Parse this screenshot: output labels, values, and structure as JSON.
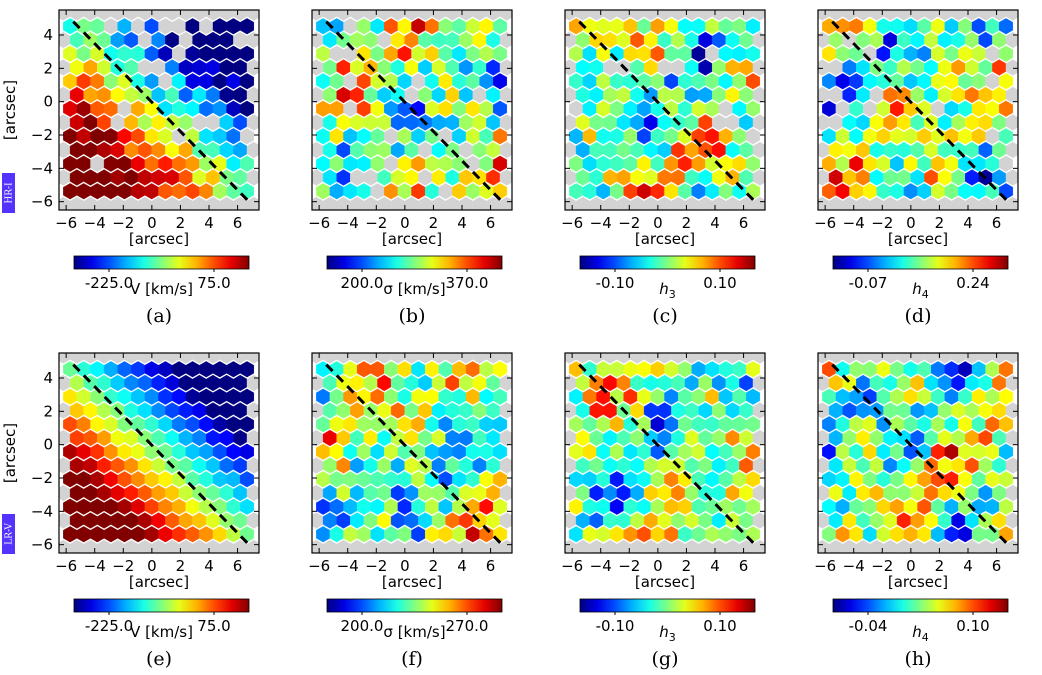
{
  "colors": {
    "background": "#ffffff",
    "empty_bin": "#d3d3d3",
    "row_tag": "#5533ff",
    "rotation_axis": "#000000",
    "colormap": "jet"
  },
  "row_tags": [
    "HR-I",
    "LR-V"
  ],
  "chart_data": [
    {
      "type": "heatmap",
      "panel": "(a)",
      "row_tag": "HR-I",
      "xlabel": "[arcsec]",
      "ylabel": "[arcsec]",
      "xticks": [
        -6,
        -4,
        -2,
        0,
        2,
        4,
        6
      ],
      "yticks": [
        4,
        2,
        0,
        -2,
        -4,
        -6
      ],
      "xlim": [
        -6.5,
        7.5
      ],
      "ylim": [
        -6.5,
        5.5
      ],
      "quantity": "V",
      "colorbar_label": "V [km/s]",
      "colorbar_min_label": "-225.0",
      "colorbar_max_label": "75.0",
      "vmin": -225,
      "vmax": 75,
      "pattern": "rotation",
      "axis_line": [
        [
          -5.5,
          4.8
        ],
        [
          6.8,
          -6.0
        ]
      ]
    },
    {
      "type": "heatmap",
      "panel": "(b)",
      "row_tag": "HR-I",
      "xlabel": "[arcsec]",
      "ylabel": "",
      "xticks": [
        -6,
        -4,
        -2,
        0,
        2,
        4,
        6
      ],
      "yticks": [],
      "xlim": [
        -6.5,
        7.5
      ],
      "ylim": [
        -6.5,
        5.5
      ],
      "quantity": "σ",
      "colorbar_label": "σ [km/s]",
      "colorbar_min_label": "200.0",
      "colorbar_max_label": "370.0",
      "vmin": 200,
      "vmax": 370,
      "pattern": "noisy",
      "axis_line": [
        [
          -5.5,
          4.8
        ],
        [
          6.8,
          -6.0
        ]
      ]
    },
    {
      "type": "heatmap",
      "panel": "(c)",
      "row_tag": "HR-I",
      "xlabel": "[arcsec]",
      "ylabel": "",
      "xticks": [
        -6,
        -4,
        -2,
        0,
        2,
        4,
        6
      ],
      "yticks": [],
      "xlim": [
        -6.5,
        7.5
      ],
      "ylim": [
        -6.5,
        5.5
      ],
      "quantity": "h3",
      "colorbar_label": "h",
      "colorbar_sub": "3",
      "colorbar_min_label": "-0.10",
      "colorbar_max_label": "0.10",
      "vmin": -0.1,
      "vmax": 0.1,
      "pattern": "noisy",
      "axis_line": [
        [
          -5.5,
          4.8
        ],
        [
          6.8,
          -6.0
        ]
      ]
    },
    {
      "type": "heatmap",
      "panel": "(d)",
      "row_tag": "HR-I",
      "xlabel": "[arcsec]",
      "ylabel": "",
      "xticks": [
        -6,
        -4,
        -2,
        0,
        2,
        4,
        6
      ],
      "yticks": [],
      "xlim": [
        -6.5,
        7.5
      ],
      "ylim": [
        -6.5,
        5.5
      ],
      "quantity": "h4",
      "colorbar_label": "h",
      "colorbar_sub": "4",
      "colorbar_min_label": "-0.07",
      "colorbar_max_label": "0.24",
      "vmin": -0.07,
      "vmax": 0.24,
      "pattern": "noisy",
      "axis_line": [
        [
          -5.5,
          4.8
        ],
        [
          6.8,
          -6.0
        ]
      ]
    },
    {
      "type": "heatmap",
      "panel": "(e)",
      "row_tag": "LR-V",
      "xlabel": "[arcsec]",
      "ylabel": "[arcsec]",
      "xticks": [
        -6,
        -4,
        -2,
        0,
        2,
        4,
        6
      ],
      "yticks": [
        4,
        2,
        0,
        -2,
        -4,
        -6
      ],
      "xlim": [
        -6.5,
        7.5
      ],
      "ylim": [
        -6.5,
        5.5
      ],
      "quantity": "V",
      "colorbar_label": "V [km/s]",
      "colorbar_min_label": "-225.0",
      "colorbar_max_label": "75.0",
      "vmin": -225,
      "vmax": 75,
      "pattern": "rotation",
      "axis_line": [
        [
          -5.5,
          4.8
        ],
        [
          6.8,
          -6.0
        ]
      ]
    },
    {
      "type": "heatmap",
      "panel": "(f)",
      "row_tag": "LR-V",
      "xlabel": "[arcsec]",
      "ylabel": "",
      "xticks": [
        -6,
        -4,
        -2,
        0,
        2,
        4,
        6
      ],
      "yticks": [],
      "xlim": [
        -6.5,
        7.5
      ],
      "ylim": [
        -6.5,
        5.5
      ],
      "quantity": "σ",
      "colorbar_label": "σ [km/s]",
      "colorbar_min_label": "200.0",
      "colorbar_max_label": "270.0",
      "vmin": 200,
      "vmax": 270,
      "pattern": "noisy",
      "axis_line": [
        [
          -5.5,
          4.8
        ],
        [
          6.8,
          -6.0
        ]
      ]
    },
    {
      "type": "heatmap",
      "panel": "(g)",
      "row_tag": "LR-V",
      "xlabel": "[arcsec]",
      "ylabel": "",
      "xticks": [
        -6,
        -4,
        -2,
        0,
        2,
        4,
        6
      ],
      "yticks": [],
      "xlim": [
        -6.5,
        7.5
      ],
      "ylim": [
        -6.5,
        5.5
      ],
      "quantity": "h3",
      "colorbar_label": "h",
      "colorbar_sub": "3",
      "colorbar_min_label": "-0.10",
      "colorbar_max_label": "0.10",
      "vmin": -0.1,
      "vmax": 0.1,
      "pattern": "noisy",
      "axis_line": [
        [
          -5.5,
          4.8
        ],
        [
          6.8,
          -6.0
        ]
      ]
    },
    {
      "type": "heatmap",
      "panel": "(h)",
      "row_tag": "LR-V",
      "xlabel": "[arcsec]",
      "ylabel": "",
      "xticks": [
        -6,
        -4,
        -2,
        0,
        2,
        4,
        6
      ],
      "yticks": [],
      "xlim": [
        -6.5,
        7.5
      ],
      "ylim": [
        -6.5,
        5.5
      ],
      "quantity": "h4",
      "colorbar_label": "h",
      "colorbar_sub": "4",
      "colorbar_min_label": "-0.04",
      "colorbar_max_label": "0.10",
      "vmin": -0.04,
      "vmax": 0.1,
      "pattern": "noisy",
      "axis_line": [
        [
          -5.5,
          4.8
        ],
        [
          6.8,
          -6.0
        ]
      ]
    }
  ]
}
